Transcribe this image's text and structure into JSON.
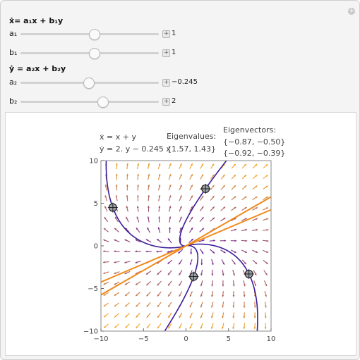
{
  "controls": {
    "x_eq_label": "ẋ= a₁x + b₁y",
    "y_eq_label": "ẏ = a₂x + b₂y",
    "a1": {
      "label": "a₁",
      "value": "1",
      "fraction": 0.53
    },
    "b1": {
      "label": "b₁",
      "value": "1",
      "fraction": 0.53
    },
    "a2": {
      "label": "a₂",
      "value": "−0.245",
      "fraction": 0.49
    },
    "b2": {
      "label": "b₂",
      "value": "2",
      "fraction": 0.59
    },
    "plus_corner": "+",
    "plus_button": "+"
  },
  "plot": {
    "eq_x": "ẋ = x + y",
    "eq_y": "ẏ = 2. y − 0.245 x",
    "eigenvalues_title": "Eigenvalues:",
    "eigenvalues": "{1.57, 1.43}",
    "eigenvectors_title": "Eigenvectors:",
    "eigenvector_1": "{−0.87, −0.50}",
    "eigenvector_2": "{−0.92, −0.39}",
    "x_ticks": [
      "−10",
      "−5",
      "0",
      "5",
      "10"
    ],
    "y_ticks": [
      "10",
      "5",
      "0",
      "−5",
      "−10"
    ],
    "field": {
      "a1": 1,
      "b1": 1,
      "a2": -0.245,
      "b2": 2
    },
    "eigen_slopes": [
      0.575,
      0.424
    ],
    "locators": [
      [
        -8.6,
        4.5
      ],
      [
        2.3,
        6.7
      ],
      [
        0.9,
        -3.6
      ],
      [
        7.4,
        -3.3
      ]
    ],
    "colors": {
      "line": "#f08a1c",
      "locator": "#9aa0a8",
      "arrow_slow": "#5a0fa8",
      "arrow_fast": "#f5a41c",
      "trajectory": "#3a1c9a"
    }
  }
}
